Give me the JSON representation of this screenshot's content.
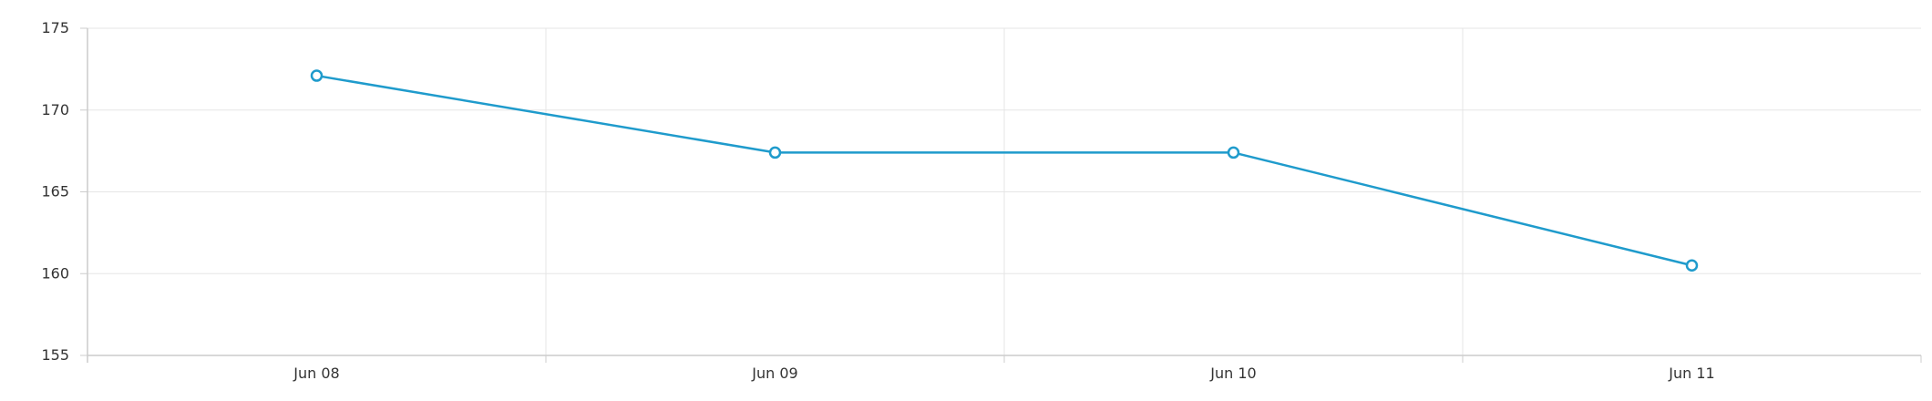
{
  "chart_data": {
    "type": "line",
    "title": "",
    "xlabel": "",
    "ylabel": "",
    "categories": [
      "Jun 08",
      "Jun 09",
      "Jun 10",
      "Jun 11"
    ],
    "series": [
      {
        "values": [
          172.1,
          167.4,
          167.4,
          160.5
        ],
        "color": "#1f9bcc"
      }
    ],
    "ylim": [
      155,
      175
    ],
    "yticks": [
      155,
      160,
      165,
      170,
      175
    ],
    "grid": true,
    "legend": "none",
    "colors": {
      "grid": "#e6e6e6",
      "axis": "#cccccc",
      "text": "#333333",
      "marker_fill": "#ffffff"
    }
  }
}
